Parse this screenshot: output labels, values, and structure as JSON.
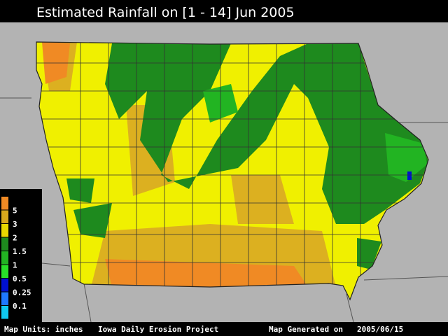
{
  "header": {
    "title": "Estimated Rainfall on [1 - 14] Jun 2005"
  },
  "legend": {
    "colors": [
      "#f08a24",
      "#d8a81c",
      "#e8d800",
      "#1e8a1e",
      "#22b422",
      "#28e028",
      "#0010d0",
      "#1e78ff",
      "#10c8f0"
    ],
    "labels": [
      5,
      3,
      2,
      1.5,
      1,
      0.5,
      0.25,
      0.1
    ]
  },
  "footer": {
    "units": "Map Units: inches",
    "project": "Iowa Daily Erosion Project",
    "generated_label": "Map Generated on",
    "date": "2005/06/15"
  }
}
